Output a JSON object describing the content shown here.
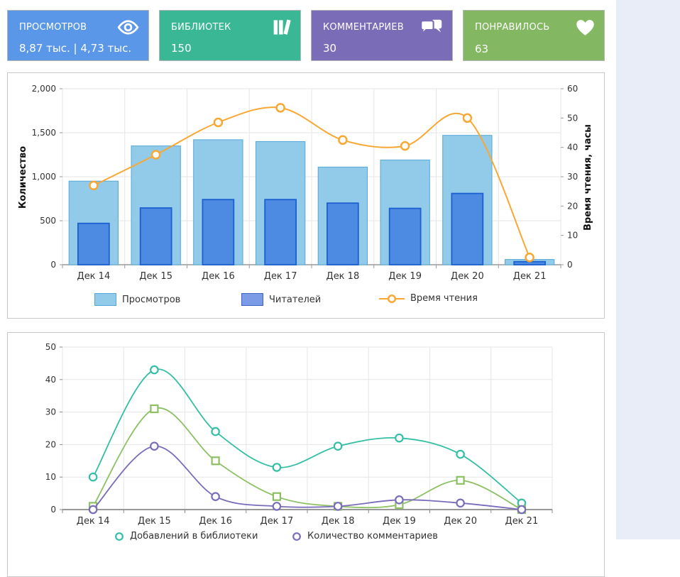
{
  "cards": [
    {
      "label": "ПРОСМОТРОВ",
      "value": "8,87 тыс. | 4,73 тыс.",
      "color": "#5b97e8",
      "icon": "eye-icon"
    },
    {
      "label": "БИБЛИОТЕК",
      "value": "150",
      "color": "#3ab795",
      "icon": "books-icon"
    },
    {
      "label": "КОММЕНТАРИЕВ",
      "value": "30",
      "color": "#7b6cb8",
      "icon": "comments-icon"
    },
    {
      "label": "ПОНРАВИЛОСЬ",
      "value": "63",
      "color": "#84b761",
      "icon": "heart-icon"
    }
  ],
  "colors": {
    "page_bg": "#ffffff",
    "side_strip": "#e9edf7",
    "panel_border": "#c9c9c9",
    "card_border": "#b6b6b6",
    "grid": "#e6e6e6",
    "axis": "#9a9a9a",
    "tick_text": "#333333"
  },
  "chart_data": [
    {
      "type": "bar+line",
      "categories": [
        "Дек 14",
        "Дек 15",
        "Дек 16",
        "Дек 17",
        "Дек 18",
        "Дек 19",
        "Дек 20",
        "Дек 21"
      ],
      "series": [
        {
          "name": "Просмотров",
          "type": "bar",
          "axis": "left",
          "color": "#92cbe9",
          "border": "#55a7d8",
          "legend_fill": "#92cbe9",
          "legend_border": "#55a7d8",
          "values": [
            950,
            1350,
            1420,
            1400,
            1110,
            1190,
            1470,
            60
          ]
        },
        {
          "name": "Читателей",
          "type": "bar",
          "axis": "left",
          "color": "#4d8be2",
          "border": "#1b5fd0",
          "legend_fill": "#7b9be6",
          "legend_border": "#3b63c8",
          "values": [
            470,
            645,
            740,
            740,
            700,
            640,
            810,
            35
          ]
        },
        {
          "name": "Время чтения",
          "type": "line",
          "axis": "right",
          "color": "#f8a832",
          "marker": "circle",
          "values": [
            27,
            37.5,
            48.5,
            53.5,
            42.5,
            40.5,
            50,
            2.5
          ]
        }
      ],
      "ylabel_left": "Количество",
      "ylabel_right": "Время чтения, часы",
      "ylim_left": [
        0,
        2000
      ],
      "ylim_right": [
        0,
        60
      ],
      "yticks_left": [
        "0",
        "500",
        "1,000",
        "1,500",
        "2,000"
      ],
      "yticks_left_values": [
        0,
        500,
        1000,
        1500,
        2000
      ],
      "yticks_right": [
        0,
        10,
        20,
        30,
        40,
        50,
        60
      ],
      "grid": true,
      "legend_position": "bottom"
    },
    {
      "type": "line",
      "categories": [
        "Дек 14",
        "Дек 15",
        "Дек 16",
        "Дек 17",
        "Дек 18",
        "Дек 19",
        "Дек 20",
        "Дек 21"
      ],
      "series": [
        {
          "name": "Добавлений в библиотеки",
          "color": "#33bfa4",
          "marker": "circle",
          "values": [
            10,
            43,
            24,
            13,
            19.5,
            22,
            17,
            2
          ]
        },
        {
          "name": "",
          "color": "#8cc063",
          "marker": "square",
          "values": [
            1,
            31,
            15,
            4,
            1,
            1.5,
            9,
            0
          ]
        },
        {
          "name": "Количество комментариев",
          "color": "#7a6cbb",
          "marker": "circle",
          "values": [
            0,
            19.5,
            4,
            1,
            1,
            3,
            2,
            0
          ]
        }
      ],
      "ylim": [
        0,
        50
      ],
      "yticks": [
        0,
        10,
        20,
        30,
        40,
        50
      ],
      "grid": true,
      "legend_position": "bottom"
    }
  ]
}
